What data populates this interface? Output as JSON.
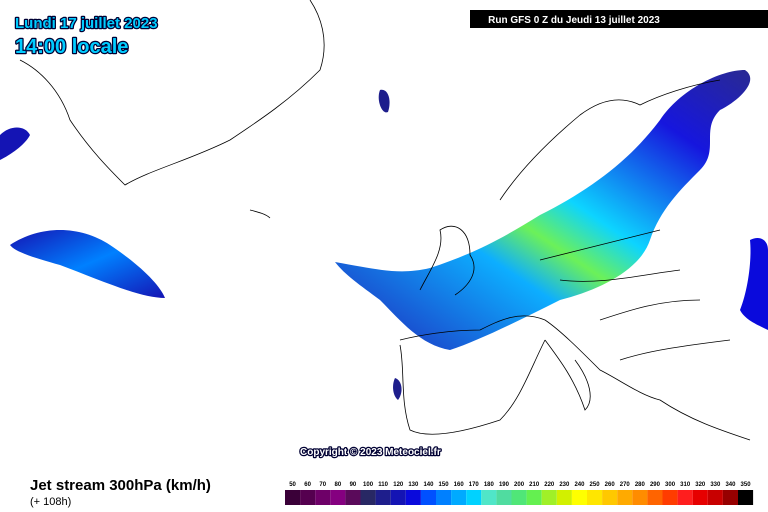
{
  "header": {
    "date": "Lundi 17 juillet 2023",
    "time": "14:00 locale",
    "run": "Run GFS 0 Z du Jeudi 13 juillet 2023"
  },
  "copyright": "Copyright © 2023 Meteociel.fr",
  "footer": {
    "title": "Jet stream 300hPa (km/h)",
    "lead_time": "(+ 108h)"
  },
  "legend": {
    "values": [
      50,
      60,
      70,
      80,
      90,
      100,
      110,
      120,
      130,
      140,
      150,
      160,
      170,
      180,
      190,
      200,
      210,
      220,
      230,
      240,
      250,
      260,
      270,
      280,
      290,
      300,
      310,
      320,
      330,
      340,
      350
    ],
    "colors": [
      "#3a0038",
      "#55004f",
      "#6e0068",
      "#850080",
      "#5a0a5a",
      "#282864",
      "#1e1e8c",
      "#1414b4",
      "#0a0adc",
      "#0050ff",
      "#0080ff",
      "#00aaff",
      "#00d2ff",
      "#50e6c8",
      "#50dca0",
      "#50e678",
      "#64f050",
      "#a0f028",
      "#d2f000",
      "#ffff00",
      "#ffe600",
      "#ffc800",
      "#ffaa00",
      "#ff8c00",
      "#ff6400",
      "#ff3c00",
      "#ff1e1e",
      "#e60000",
      "#c80000",
      "#960000",
      "#000000"
    ]
  }
}
